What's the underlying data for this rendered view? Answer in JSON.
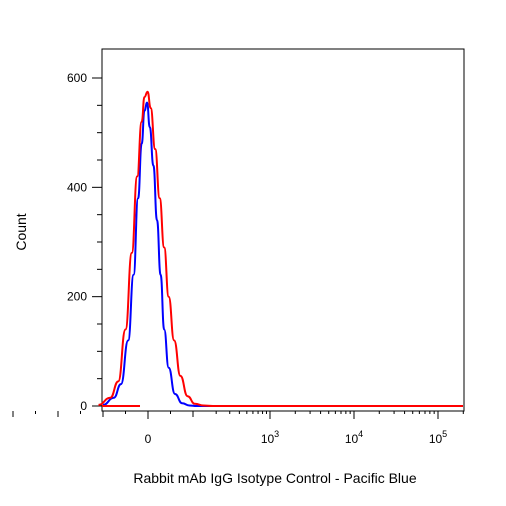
{
  "chart_data": {
    "type": "line",
    "title": "",
    "xlabel": "Rabbit mAb IgG Isotype Control - Pacific Blue",
    "ylabel": "Count",
    "ylim": [
      0,
      640
    ],
    "y_ticks": [
      {
        "value": 0,
        "label": "0"
      },
      {
        "value": 200,
        "label": "200"
      },
      {
        "value": 400,
        "label": "400"
      },
      {
        "value": 600,
        "label": "600"
      }
    ],
    "x_scale": "biexponential",
    "x_ticks": [
      {
        "value": 0,
        "base": "0",
        "exp": ""
      },
      {
        "value": 1000,
        "base": "10",
        "exp": "3"
      },
      {
        "value": 10000,
        "base": "10",
        "exp": "4"
      },
      {
        "value": 100000,
        "base": "10",
        "exp": "5"
      }
    ],
    "grid": false,
    "legend": "none",
    "series": [
      {
        "color": "#0000ff",
        "x": [
          -500,
          -380,
          -300,
          -220,
          -160,
          -110,
          -70,
          -40,
          -10,
          20,
          60,
          100,
          140,
          180,
          230,
          300,
          380,
          460,
          540,
          620
        ],
        "y": [
          2,
          15,
          40,
          120,
          240,
          380,
          480,
          540,
          555,
          510,
          440,
          340,
          240,
          140,
          70,
          22,
          5,
          1,
          0,
          0
        ]
      },
      {
        "color": "#ff0000",
        "x": [
          -550,
          -420,
          -330,
          -250,
          -180,
          -120,
          -70,
          -40,
          -5,
          30,
          80,
          130,
          180,
          230,
          290,
          360,
          440,
          520,
          620,
          720
        ],
        "y": [
          2,
          15,
          45,
          140,
          280,
          420,
          520,
          565,
          575,
          545,
          470,
          380,
          290,
          200,
          120,
          55,
          18,
          4,
          1,
          0
        ]
      }
    ]
  }
}
